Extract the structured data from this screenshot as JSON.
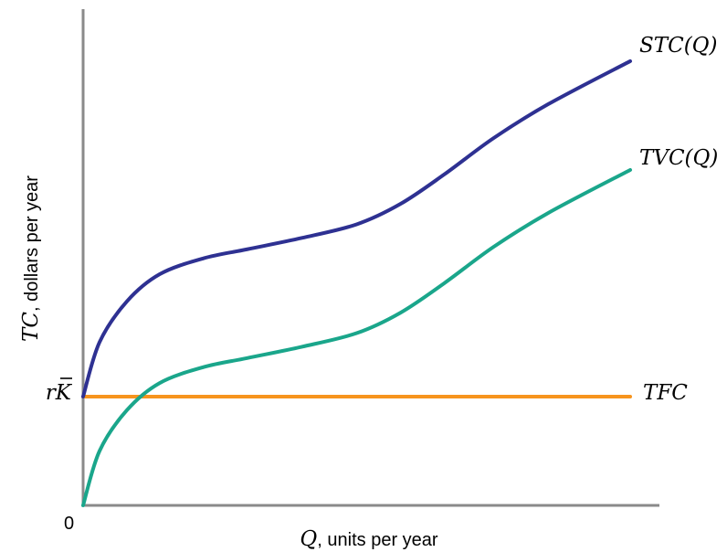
{
  "chart_data": {
    "type": "line",
    "xlabel_var": "Q",
    "xlabel_rest": ", units per year",
    "ylabel_var": "TC",
    "ylabel_rest": ", dollars per year",
    "origin_label": "0",
    "y_tick_label": "rK",
    "xlim": [
      0,
      100
    ],
    "ylim": [
      0,
      100
    ],
    "grid": false,
    "colors": {
      "STC": "#2e3192",
      "TVC": "#1aa68b",
      "TFC": "#f7941d",
      "axis": "#8a8a8a"
    },
    "series": [
      {
        "name": "STC(Q)",
        "x": [
          0,
          3,
          8,
          14,
          22,
          30,
          40,
          50,
          58,
          66,
          75,
          85,
          100
        ],
        "y": [
          24,
          36,
          45,
          51,
          54.5,
          56.5,
          59,
          62,
          66.5,
          73,
          81,
          88.5,
          98
        ]
      },
      {
        "name": "TVC(Q)",
        "x": [
          0,
          3,
          8,
          14,
          22,
          30,
          40,
          50,
          58,
          66,
          75,
          85,
          100
        ],
        "y": [
          0,
          12,
          21,
          27,
          30.5,
          32.5,
          35,
          38,
          42.5,
          49,
          57,
          64.5,
          74
        ]
      },
      {
        "name": "TFC",
        "x": [
          0,
          100
        ],
        "y": [
          24,
          24
        ]
      }
    ]
  }
}
